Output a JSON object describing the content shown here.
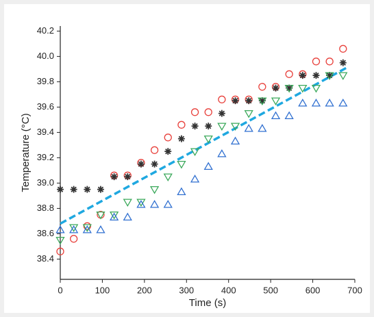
{
  "chart_data": {
    "type": "scatter",
    "xlabel": "Time (s)",
    "ylabel": "Temperature (°C)",
    "xlim": [
      0,
      700
    ],
    "xticks": [
      0,
      100,
      200,
      300,
      400,
      500,
      600,
      700
    ],
    "ylim": [
      38.24,
      40.24
    ],
    "yticks": [
      38.4,
      38.6,
      38.8,
      {
        "value": 39,
        "label": "39.0"
      },
      39.2,
      39.4,
      39.6,
      39.8,
      {
        "value": 40,
        "label": "40.0"
      },
      40.2
    ],
    "x": [
      0,
      32,
      64,
      96,
      128,
      160,
      192,
      224,
      256,
      288,
      320,
      352,
      384,
      416,
      448,
      480,
      512,
      544,
      576,
      608,
      640,
      672
    ],
    "series": [
      {
        "marker": "circle",
        "color": "#e8413c",
        "values": [
          38.46,
          38.56,
          38.66,
          38.75,
          39.06,
          39.06,
          39.16,
          39.26,
          39.36,
          39.46,
          39.56,
          39.56,
          39.66,
          39.66,
          39.66,
          39.76,
          39.76,
          39.86,
          39.86,
          39.96,
          39.96,
          40.06
        ]
      },
      {
        "marker": "asterisk",
        "color": "#333333",
        "values": [
          38.95,
          38.95,
          38.95,
          38.95,
          39.05,
          39.05,
          39.15,
          39.15,
          39.25,
          39.35,
          39.45,
          39.45,
          39.55,
          39.65,
          39.65,
          39.65,
          39.75,
          39.75,
          39.85,
          39.85,
          39.85,
          39.95
        ]
      },
      {
        "marker": "triangle-down",
        "color": "#3aa85a",
        "values": [
          38.55,
          38.65,
          38.65,
          38.75,
          38.75,
          38.85,
          38.85,
          38.95,
          39.05,
          39.15,
          39.25,
          39.35,
          39.45,
          39.45,
          39.55,
          39.65,
          39.65,
          39.75,
          39.75,
          39.75,
          39.85,
          39.85
        ]
      },
      {
        "marker": "triangle-up",
        "color": "#2f6fd0",
        "values": [
          38.63,
          38.63,
          38.63,
          38.63,
          38.73,
          38.73,
          38.83,
          38.83,
          38.83,
          38.93,
          39.03,
          39.13,
          39.23,
          39.33,
          39.43,
          39.43,
          39.53,
          39.53,
          39.63,
          39.63,
          39.63,
          39.63
        ]
      }
    ],
    "trend_line": {
      "color": "#1fa8e0",
      "x": [
        0,
        680
      ],
      "values": [
        38.68,
        39.91
      ]
    }
  }
}
